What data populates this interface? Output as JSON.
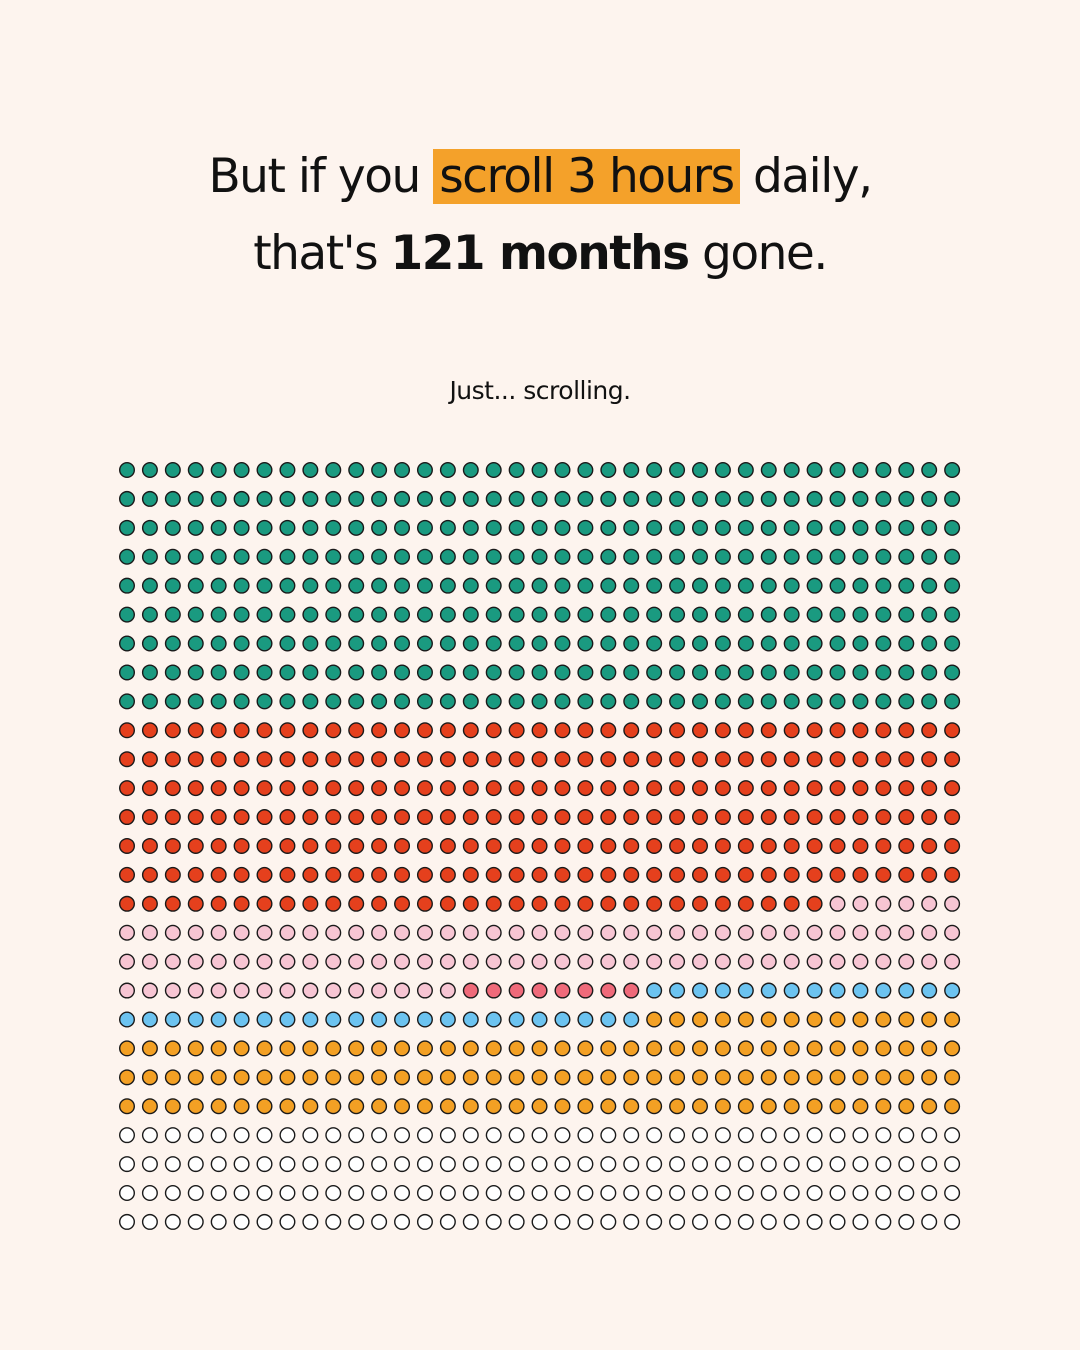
{
  "chart_data": {
    "type": "waffle",
    "title": {
      "line1": {
        "before": "But if you ",
        "highlight": "scroll 3 hours",
        "after": " daily,"
      },
      "line2": {
        "before": "that's ",
        "bold": "121 months",
        "after": " gone."
      }
    },
    "subtitle": "Just... scrolling.",
    "series": [
      {
        "color": "#1a9a80",
        "value": 333
      },
      {
        "color": "#e5401d",
        "value": 253
      },
      {
        "color": "#f7c5d3",
        "value": 95
      },
      {
        "color": "#ef6a7a",
        "value": 8
      },
      {
        "color": "#6cc3f0",
        "value": 37
      },
      {
        "color": "#f3a024",
        "value": 125
      },
      {
        "color": "#ffffff",
        "value": 148
      }
    ]
  }
}
